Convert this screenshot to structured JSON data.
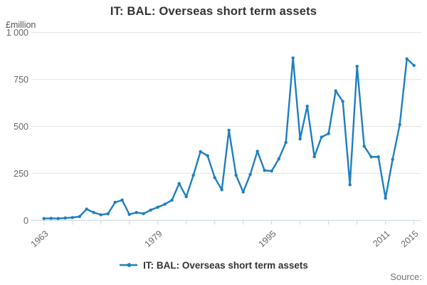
{
  "title": "IT: BAL: Overseas short term assets",
  "y_axis_unit": "£million",
  "legend": {
    "label": "IT: BAL: Overseas short term assets"
  },
  "source_label": "Source:",
  "colors": {
    "line": "#1e7fc2",
    "marker": "#1e7fc2",
    "grid": "#e4e4e4",
    "axis": "#c8d6e2",
    "title_text": "#333333",
    "tick_text": "#666666",
    "unit_text": "#555555",
    "source_text": "#757575"
  },
  "chart_data": {
    "type": "line",
    "title": "IT: BAL: Overseas short term assets",
    "xlabel": "",
    "ylabel": "£million",
    "ylim": [
      0,
      1000
    ],
    "yticks": [
      0,
      250,
      500,
      750,
      1000
    ],
    "ytick_labels": [
      "0",
      "250",
      "500",
      "750",
      "1 000"
    ],
    "xtick_minor_step_years": 4,
    "xtick_labeled_years": [
      1963,
      1979,
      1995,
      2011,
      2015
    ],
    "grid": "horizontal",
    "legend_position": "bottom",
    "series_name": "IT: BAL: Overseas short term assets",
    "x": [
      1963,
      1964,
      1965,
      1966,
      1967,
      1968,
      1969,
      1970,
      1971,
      1972,
      1973,
      1974,
      1975,
      1976,
      1977,
      1978,
      1979,
      1980,
      1981,
      1982,
      1983,
      1984,
      1985,
      1986,
      1987,
      1988,
      1989,
      1990,
      1991,
      1992,
      1993,
      1994,
      1995,
      1996,
      1997,
      1998,
      1999,
      2000,
      2001,
      2002,
      2003,
      2004,
      2005,
      2006,
      2007,
      2008,
      2009,
      2010,
      2011,
      2012,
      2013,
      2014,
      2015
    ],
    "values": [
      10,
      11,
      10,
      13,
      15,
      20,
      60,
      42,
      30,
      35,
      96,
      108,
      32,
      42,
      36,
      55,
      70,
      86,
      108,
      196,
      126,
      240,
      366,
      344,
      228,
      163,
      480,
      240,
      151,
      245,
      368,
      266,
      263,
      327,
      415,
      865,
      434,
      608,
      339,
      443,
      462,
      690,
      633,
      190,
      820,
      395,
      338,
      338,
      118,
      325,
      510,
      860,
      825
    ]
  }
}
